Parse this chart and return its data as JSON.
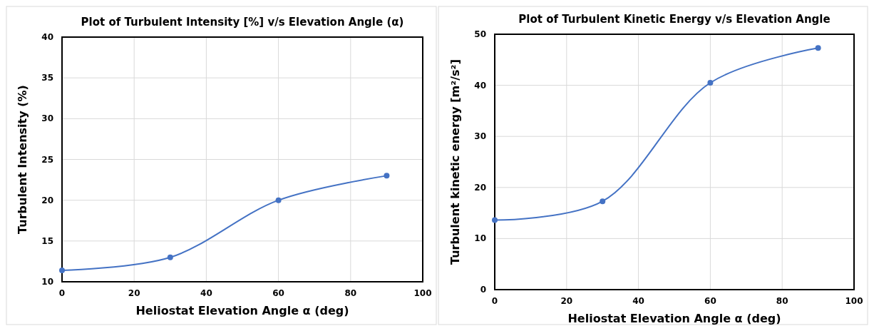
{
  "chart_data": [
    {
      "type": "line",
      "title": "Plot of Turbulent Intensity [%] v/s Elevation Angle (α)",
      "xlabel": "Heliostat Elevation Angle α (deg)",
      "ylabel": "Turbulent Intensity (%)",
      "x": [
        0,
        30,
        60,
        90
      ],
      "series": [
        {
          "color": "#4472c4",
          "values": [
            11.4,
            13.0,
            20.0,
            23.0
          ]
        }
      ],
      "xlim": [
        0,
        100
      ],
      "xticks": [
        0,
        20,
        40,
        60,
        80,
        100
      ],
      "ylim": [
        10,
        40
      ],
      "yticks": [
        10,
        15,
        20,
        25,
        30,
        35,
        40
      ],
      "grid": true,
      "marker": "circle",
      "line_style": "solid"
    },
    {
      "type": "line",
      "title": "Plot of Turbulent Kinetic Energy v/s Elevation  Angle",
      "xlabel": "Heliostat Elevation Angle α (deg)",
      "ylabel": "Turbulent kinetic energy [m²/s²]",
      "x": [
        0,
        30,
        60,
        90
      ],
      "series": [
        {
          "color": "#4472c4",
          "values": [
            13.6,
            17.3,
            40.5,
            47.3
          ]
        }
      ],
      "xlim": [
        0,
        100
      ],
      "xticks": [
        0,
        20,
        40,
        60,
        80,
        100
      ],
      "ylim": [
        0,
        50
      ],
      "yticks": [
        0,
        10,
        20,
        30,
        40,
        50
      ],
      "grid": true,
      "marker": "circle",
      "line_style": "solid"
    }
  ]
}
